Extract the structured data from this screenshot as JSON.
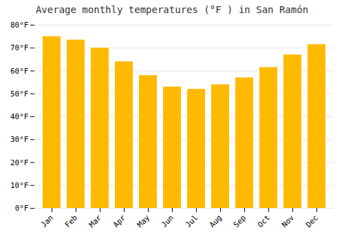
{
  "chart_data": {
    "type": "bar",
    "title": "Average monthly temperatures (°F ) in San Ramón",
    "categories": [
      "Jan",
      "Feb",
      "Mar",
      "Apr",
      "May",
      "Jun",
      "Jul",
      "Aug",
      "Sep",
      "Oct",
      "Nov",
      "Dec"
    ],
    "values": [
      75,
      73.5,
      70,
      64,
      58,
      53,
      52,
      54,
      57,
      61.5,
      67,
      71.5
    ],
    "color": "#FFBA00",
    "ylim": [
      0,
      80
    ],
    "yticks": [
      {
        "value": 0,
        "label": "0°F"
      },
      {
        "value": 10,
        "label": "10°F"
      },
      {
        "value": 20,
        "label": "20°F"
      },
      {
        "value": 30,
        "label": "30°F"
      },
      {
        "value": 40,
        "label": "40°F"
      },
      {
        "value": 50,
        "label": "50°F"
      },
      {
        "value": 60,
        "label": "60°F"
      },
      {
        "value": 70,
        "label": "70°F"
      },
      {
        "value": 80,
        "label": "80°F"
      }
    ],
    "grid": true
  }
}
